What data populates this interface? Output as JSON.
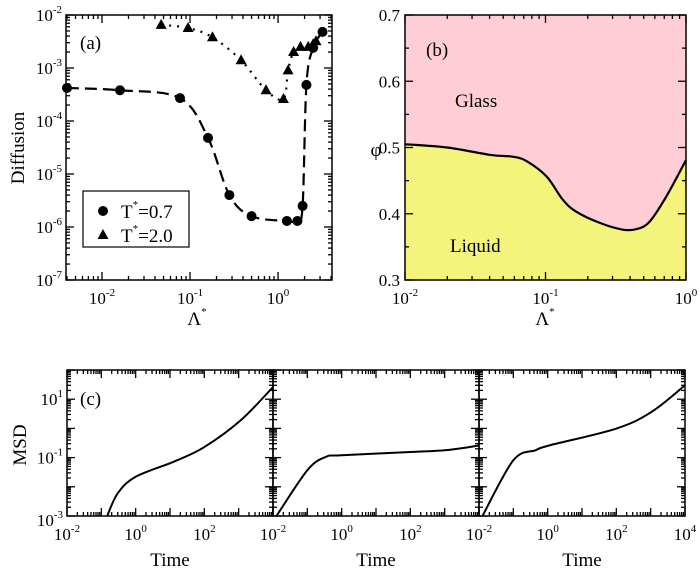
{
  "chart_data": [
    {
      "panel_label": "(a)",
      "type": "line",
      "xlabel": "Λ",
      "xlabel_sup": "*",
      "ylabel": "Diffusion",
      "xscale": "log",
      "yscale": "log",
      "xlim": [
        0.0039,
        4.1
      ],
      "ylim": [
        1e-07,
        0.01
      ],
      "xticks": [
        {
          "base": "10",
          "exp": "-2",
          "v": 0.01
        },
        {
          "base": "10",
          "exp": "-1",
          "v": 0.1
        },
        {
          "base": "10",
          "exp": "0",
          "v": 1
        }
      ],
      "yticks": [
        {
          "base": "10",
          "exp": "-7",
          "v": 1e-07
        },
        {
          "base": "10",
          "exp": "-6",
          "v": 1e-06
        },
        {
          "base": "10",
          "exp": "-5",
          "v": 1e-05
        },
        {
          "base": "10",
          "exp": "-4",
          "v": 0.0001
        },
        {
          "base": "10",
          "exp": "-3",
          "v": 0.001
        },
        {
          "base": "10",
          "exp": "-2",
          "v": 0.01
        }
      ],
      "legend_position": "bottom-left",
      "series": [
        {
          "name": "T",
          "name_sup": "*",
          "name_rest": "=0.7",
          "marker": "circle",
          "line": "dashed",
          "x": [
            0.004,
            0.016,
            0.077,
            0.16,
            0.28,
            0.5,
            1.26,
            1.66,
            1.9,
            2.1,
            2.5,
            3.2
          ],
          "y": [
            0.00042,
            0.00038,
            0.00027,
            4.8e-05,
            4e-06,
            1.6e-06,
            1.3e-06,
            1.3e-06,
            2.5e-06,
            0.00048,
            0.0024,
            0.0048
          ]
        },
        {
          "name": "T",
          "name_sup": "*",
          "name_rest": "=2.0",
          "marker": "triangle",
          "line": "dotted",
          "x": [
            0.047,
            0.095,
            0.18,
            0.38,
            0.73,
            1.15,
            1.3,
            1.5,
            1.8,
            2.2,
            2.5,
            2.7
          ],
          "y": [
            0.0065,
            0.0057,
            0.0038,
            0.0014,
            0.00038,
            0.00026,
            0.0009,
            0.002,
            0.0025,
            0.0025,
            0.0028,
            0.0032
          ]
        }
      ]
    },
    {
      "panel_label": "(b)",
      "type": "area",
      "xlabel": "Λ",
      "xlabel_sup": "*",
      "ylabel": "φ",
      "xscale": "log",
      "xlim": [
        0.01,
        1
      ],
      "ylim": [
        0.3,
        0.7
      ],
      "xticks": [
        {
          "base": "10",
          "exp": "-2",
          "v": 0.01
        },
        {
          "base": "10",
          "exp": "-1",
          "v": 0.1
        },
        {
          "base": "10",
          "exp": "0",
          "v": 1
        }
      ],
      "yticks": [
        "0.3",
        "0.4",
        "0.5",
        "0.6",
        "0.7"
      ],
      "regions": [
        {
          "name": "Glass",
          "color": "#ffcdd6"
        },
        {
          "name": "Liquid",
          "color": "#f4f47c"
        }
      ],
      "boundary": {
        "x": [
          0.01,
          0.02,
          0.04,
          0.059,
          0.074,
          0.102,
          0.133,
          0.166,
          0.245,
          0.355,
          0.447,
          0.55,
          0.724,
          1.0
        ],
        "y": [
          0.505,
          0.5,
          0.489,
          0.486,
          0.479,
          0.456,
          0.421,
          0.403,
          0.386,
          0.376,
          0.377,
          0.388,
          0.426,
          0.481
        ]
      }
    },
    {
      "panel_label": "(c)",
      "type": "line",
      "ylabel": "MSD",
      "xlabel": "Time",
      "xscale": "log",
      "yscale": "log",
      "xlim": [
        0.01,
        10000
      ],
      "ylim": [
        0.001,
        100
      ],
      "xticks": [
        {
          "base": "10",
          "exp": "-2",
          "v": 0.01
        },
        {
          "base": "10",
          "exp": "0",
          "v": 1
        },
        {
          "base": "10",
          "exp": "2",
          "v": 100
        },
        {
          "base": "10",
          "exp": "4",
          "v": 10000
        }
      ],
      "yticks": [
        {
          "base": "10",
          "exp": "-3",
          "v": 0.001
        },
        {
          "base": "10",
          "exp": "-1",
          "v": 0.1
        },
        {
          "base": "10",
          "exp": "1",
          "v": 10
        }
      ],
      "subplots": [
        {
          "x": [
            0.148,
            0.3,
            1,
            13.5,
            100,
            1150,
            10000
          ],
          "y": [
            0.001,
            0.006,
            0.022,
            0.074,
            0.23,
            1.9,
            26
          ]
        },
        {
          "x": [
            0.0126,
            0.1,
            0.34,
            1,
            100,
            1100,
            10000
          ],
          "y": [
            0.001,
            0.037,
            0.105,
            0.12,
            0.155,
            0.18,
            0.26
          ]
        },
        {
          "x": [
            0.0126,
            0.1,
            0.45,
            1.1,
            98,
            1070,
            10000
          ],
          "y": [
            0.001,
            0.081,
            0.18,
            0.26,
            0.98,
            3.7,
            30
          ]
        }
      ]
    }
  ]
}
